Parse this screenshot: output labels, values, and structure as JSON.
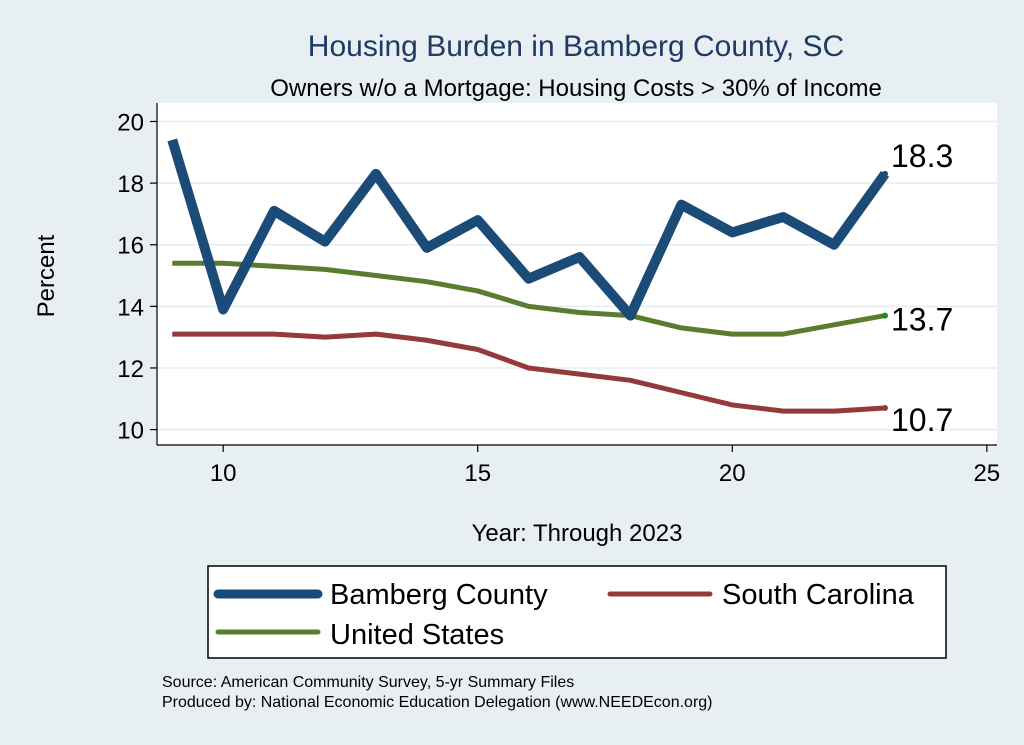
{
  "chart_data": {
    "type": "line",
    "title": "Housing Burden in Bamberg County, SC",
    "subtitle": "Owners w/o a Mortgage: Housing Costs > 30% of Income",
    "xlabel": "Year: Through 2023",
    "ylabel": "Percent",
    "xlim": [
      8.7,
      25.2
    ],
    "ylim": [
      9.5,
      20.6
    ],
    "xticks": [
      10,
      15,
      20,
      25
    ],
    "yticks": [
      10,
      12,
      14,
      16,
      18,
      20
    ],
    "grid": true,
    "x": [
      9,
      10,
      11,
      12,
      13,
      14,
      15,
      16,
      17,
      18,
      19,
      20,
      21,
      22,
      23
    ],
    "series": [
      {
        "name": "Bamberg County",
        "color": "#1b4b77",
        "values": [
          19.4,
          13.9,
          17.1,
          16.1,
          18.3,
          15.9,
          16.8,
          14.9,
          15.6,
          13.7,
          17.3,
          16.4,
          16.9,
          16.0,
          18.3
        ],
        "end_label": "18.3"
      },
      {
        "name": "South Carolina",
        "color": "#943a3c",
        "values": [
          13.1,
          13.1,
          13.1,
          13.0,
          13.1,
          12.9,
          12.6,
          12.0,
          11.8,
          11.6,
          11.2,
          10.8,
          10.6,
          10.6,
          10.7
        ],
        "end_label": "10.7"
      },
      {
        "name": "United States",
        "color": "#5a7c2f",
        "values": [
          15.4,
          15.4,
          15.3,
          15.2,
          15.0,
          14.8,
          14.5,
          14.0,
          13.8,
          13.7,
          13.3,
          13.1,
          13.1,
          13.4,
          13.7
        ],
        "end_label": "13.7"
      }
    ],
    "legend_position": "bottom",
    "notes": [
      "Source: American Community Survey, 5-yr Summary Files",
      "Produced by: National Economic Education Delegation (www.NEEDEcon.org)"
    ]
  }
}
